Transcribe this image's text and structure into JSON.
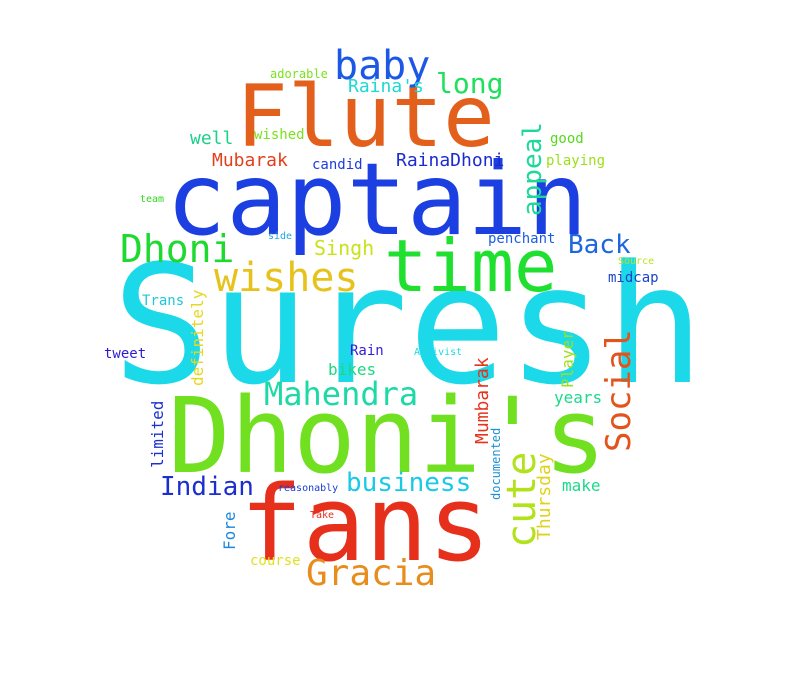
{
  "words": [
    {
      "text": "Suresh",
      "color": "#1bd9e8"
    },
    {
      "text": "Dhoni's",
      "color": "#70e020"
    },
    {
      "text": "fans",
      "color": "#e6301c"
    },
    {
      "text": "captain",
      "color": "#1b3fe0"
    },
    {
      "text": "Flute",
      "color": "#e2601c"
    },
    {
      "text": "time",
      "color": "#1fe02f"
    },
    {
      "text": "baby",
      "color": "#1c58e6"
    },
    {
      "text": "wishes",
      "color": "#e6c31c"
    },
    {
      "text": "Dhoni",
      "color": "#1ed930"
    },
    {
      "text": "Gracia",
      "color": "#e88c1c"
    },
    {
      "text": "Mahendra",
      "color": "#1cd9a5"
    },
    {
      "text": "cute",
      "color": "#b2e21c"
    },
    {
      "text": "Social",
      "color": "#e2541c"
    },
    {
      "text": "business",
      "color": "#1bc9e6"
    },
    {
      "text": "Indian",
      "color": "#1c2fce"
    },
    {
      "text": "Back",
      "color": "#1c66e0"
    },
    {
      "text": "long",
      "color": "#1ee05c"
    },
    {
      "text": "appeal",
      "color": "#1cd99a"
    },
    {
      "text": "Raina's",
      "color": "#1cd9d4"
    },
    {
      "text": "Singh",
      "color": "#c9e21c"
    },
    {
      "text": "Mubarak",
      "color": "#e2401c"
    },
    {
      "text": "RainaDhoni",
      "color": "#1c2ad0"
    },
    {
      "text": "well",
      "color": "#1ccf8a"
    },
    {
      "text": "wished",
      "color": "#7be21c"
    },
    {
      "text": "candid",
      "color": "#1c3ce0"
    },
    {
      "text": "good",
      "color": "#56d81c"
    },
    {
      "text": "playing",
      "color": "#9be01c"
    },
    {
      "text": "adorable",
      "color": "#7be21c"
    },
    {
      "text": "team",
      "color": "#31d81c"
    },
    {
      "text": "side",
      "color": "#1ca8e0"
    },
    {
      "text": "penchant",
      "color": "#1c5ee0"
    },
    {
      "text": "Source",
      "color": "#b8e21c"
    },
    {
      "text": "midcap",
      "color": "#1c44c9"
    },
    {
      "text": "Trans",
      "color": "#1cc9d6"
    },
    {
      "text": "definitely",
      "color": "#e6d81c"
    },
    {
      "text": "tweet",
      "color": "#2c1ccf"
    },
    {
      "text": "Rain",
      "color": "#341cd6"
    },
    {
      "text": "Activist",
      "color": "#1cd9e2"
    },
    {
      "text": "bikes",
      "color": "#1cd97f"
    },
    {
      "text": "Mumbarak",
      "color": "#e6341c"
    },
    {
      "text": "Player",
      "color": "#9ee01c"
    },
    {
      "text": "years",
      "color": "#1cd98a"
    },
    {
      "text": "limited",
      "color": "#1c32d0"
    },
    {
      "text": "Thursday",
      "color": "#e0d21c"
    },
    {
      "text": "documented",
      "color": "#1c92d6"
    },
    {
      "text": "reasonably",
      "color": "#1c3cd6"
    },
    {
      "text": "make",
      "color": "#1cd98a"
    },
    {
      "text": "Fore",
      "color": "#1c86e0"
    },
    {
      "text": "Take",
      "color": "#e6301c"
    },
    {
      "text": "course",
      "color": "#e0e21c"
    }
  ]
}
